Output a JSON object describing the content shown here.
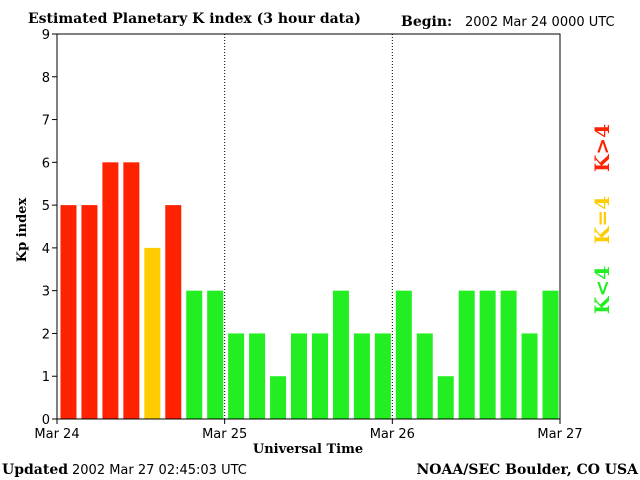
{
  "header": {
    "title": "Estimated Planetary K index (3 hour data)",
    "begin_label": "Begin:",
    "begin_value": "2002 Mar 24 0000 UTC"
  },
  "footer": {
    "updated_label": "Updated",
    "updated_value": "2002 Mar 27 02:45:03 UTC",
    "source": "NOAA/SEC Boulder, CO USA"
  },
  "legend": [
    {
      "label": "K<4",
      "color": "#22ee22"
    },
    {
      "label": "K=4",
      "color": "#ffcc00"
    },
    {
      "label": "K>4",
      "color": "#ff2200"
    }
  ],
  "colors": {
    "low": "#22ee22",
    "equal": "#ffcc00",
    "high": "#ff2200"
  },
  "chart_data": {
    "type": "bar",
    "title": "Estimated Planetary K index (3 hour data)",
    "xlabel": "Universal Time",
    "ylabel": "Kp index",
    "ylim": [
      0,
      9
    ],
    "yticks": [
      "0",
      "1",
      "2",
      "3",
      "4",
      "5",
      "6",
      "7",
      "8",
      "9"
    ],
    "xticks": [
      "Mar 24",
      "Mar 25",
      "Mar 26",
      "Mar 27"
    ],
    "bars_per_day": 8,
    "day_separators": "dotted",
    "grid": false,
    "values": [
      5,
      5,
      6,
      6,
      4,
      5,
      3,
      3,
      2,
      2,
      1,
      2,
      2,
      3,
      2,
      2,
      3,
      2,
      1,
      3,
      3,
      3,
      2,
      3
    ]
  }
}
